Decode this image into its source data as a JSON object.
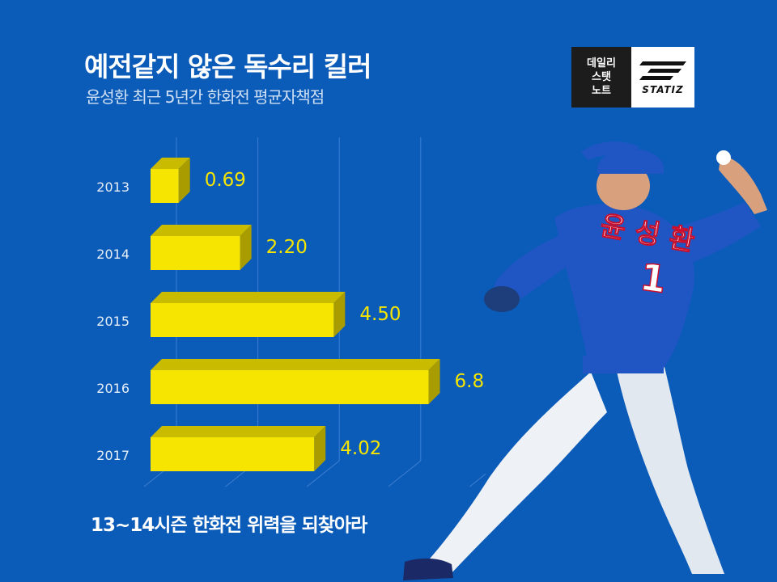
{
  "title": "예전같지 않은 독수리 킬러",
  "subtitle": "윤성환 최근 5년간 한화전 평균자책점",
  "logo": {
    "lines": [
      "데일리",
      "스탯",
      "노트"
    ],
    "brand": "STATIZ"
  },
  "footer": "13~14시즌 한화전 위력을 되찾아라",
  "player": {
    "name_on_jersey": "윤 성 환",
    "number": "1"
  },
  "colors": {
    "background": "#0b5bb8",
    "bar_front": "#f5e500",
    "bar_top": "#c9bb00",
    "bar_side": "#a89c00",
    "value_label": "#f5e500",
    "year_label": "#e6eef8"
  },
  "chart_data": {
    "type": "bar",
    "orientation": "horizontal",
    "categories": [
      "2013",
      "2014",
      "2015",
      "2016",
      "2017"
    ],
    "values": [
      0.69,
      2.2,
      4.5,
      6.83,
      4.02
    ],
    "value_labels": [
      "0.69",
      "2.20",
      "4.50",
      "6.83",
      "4.02"
    ],
    "xlim": [
      0,
      8
    ],
    "grid": true
  }
}
